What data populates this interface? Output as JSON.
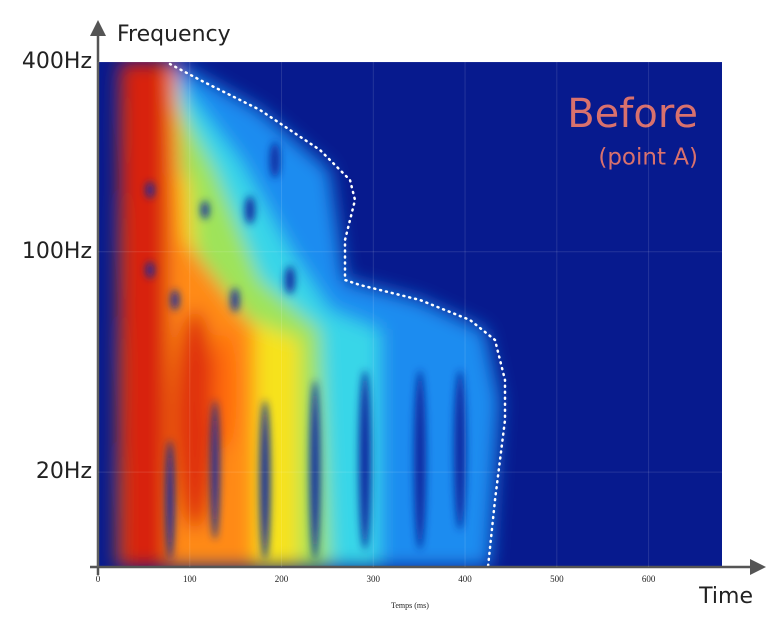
{
  "chart_data": {
    "type": "spectrogram",
    "y_label": "Frequency",
    "x_label": "Time",
    "x_caption": "Temps (ms)",
    "annotation": {
      "title": "Before",
      "subtitle": "(point A)"
    },
    "y_scale": "log",
    "ylim": [
      10,
      400
    ],
    "yticks": [
      {
        "value": 400,
        "label": "400Hz"
      },
      {
        "value": 100,
        "label": "100Hz"
      },
      {
        "value": 20,
        "label": "20Hz"
      }
    ],
    "xlim": [
      0,
      680
    ],
    "xticks": [
      0,
      100,
      200,
      300,
      400,
      500,
      600
    ],
    "grid": true
  }
}
